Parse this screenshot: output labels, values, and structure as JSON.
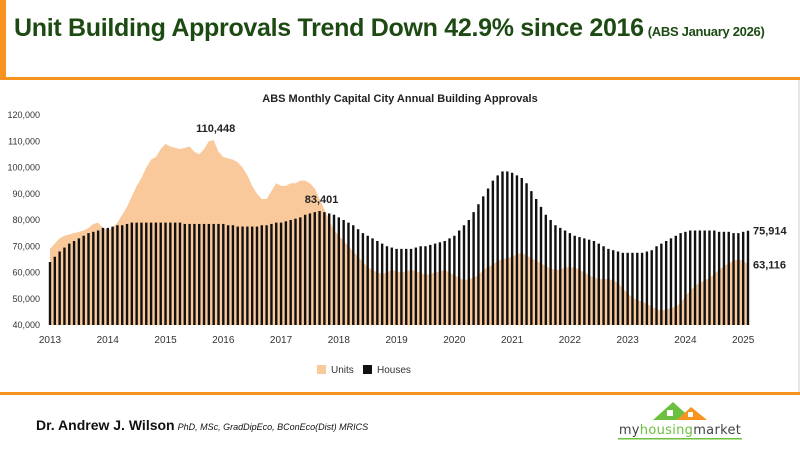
{
  "header": {
    "title": "Unit Building Approvals Trend Down 42.9% since 2016",
    "subtitle": "(ABS January 2026)"
  },
  "footer": {
    "author": "Dr. Andrew J. Wilson",
    "credentials": "PhD, MSc, GradDipEco, BConEco(Dist) MRICS",
    "logo_text": "myhousingmarket"
  },
  "colors": {
    "accent": "#f7931e",
    "title": "#1d4a12",
    "units": "#f9c89b",
    "houses": "#111111"
  },
  "chart_data": {
    "type": "bar+area",
    "title": "ABS Monthly Capital City Annual Building Approvals",
    "xlabel": "",
    "ylabel": "",
    "ylim": [
      40000,
      120000
    ],
    "yticks": [
      "40,000",
      "50,000",
      "60,000",
      "70,000",
      "80,000",
      "90,000",
      "100,000",
      "110,000",
      "120,000"
    ],
    "xticks": [
      "2013",
      "2014",
      "2015",
      "2016",
      "2017",
      "2018",
      "2019",
      "2020",
      "2021",
      "2022",
      "2023",
      "2024",
      "2025"
    ],
    "start": "2013-01",
    "frequency": "monthly",
    "grid": false,
    "legend": "bottom",
    "annotations": [
      {
        "series": "Units",
        "text": "110,448"
      },
      {
        "series": "Houses",
        "text": "83,401"
      },
      {
        "series": "Houses",
        "text": "75,914",
        "position": "end"
      },
      {
        "series": "Units",
        "text": "63,116",
        "position": "end"
      }
    ],
    "series": [
      {
        "name": "Units",
        "kind": "area",
        "values": [
          69000,
          71000,
          73000,
          74000,
          74500,
          75000,
          75500,
          76000,
          77000,
          78500,
          79000,
          77000,
          76000,
          77000,
          79000,
          82000,
          85000,
          89000,
          93000,
          96000,
          100000,
          103000,
          104000,
          107000,
          109000,
          108000,
          107500,
          107000,
          107500,
          108000,
          106000,
          105000,
          107000,
          110000,
          110448,
          106000,
          104000,
          103500,
          103000,
          102000,
          100000,
          97000,
          93000,
          90000,
          88000,
          88000,
          91000,
          94000,
          93000,
          93000,
          94000,
          94000,
          95000,
          95000,
          94000,
          92000,
          88000,
          84000,
          80000,
          76000,
          74000,
          72000,
          70000,
          68000,
          66000,
          64000,
          62000,
          61000,
          60000,
          59500,
          60000,
          61000,
          60500,
          60000,
          60500,
          61000,
          60500,
          60000,
          59000,
          59500,
          60000,
          60500,
          61000,
          60000,
          59000,
          58000,
          57000,
          57500,
          58000,
          59000,
          61000,
          62000,
          63000,
          64500,
          65000,
          65500,
          66000,
          67000,
          67500,
          66500,
          65500,
          64500,
          63500,
          62500,
          61500,
          61000,
          61000,
          62000,
          62000,
          62000,
          61000,
          60000,
          59000,
          58000,
          57500,
          57500,
          57500,
          57000,
          56000,
          54000,
          52000,
          50500,
          49500,
          49000,
          48000,
          47000,
          46000,
          45500,
          46000,
          46500,
          47000,
          48500,
          51000,
          53000,
          55000,
          56000,
          57000,
          58000,
          59500,
          61000,
          62500,
          63500,
          64500,
          65000,
          64500,
          63116
        ]
      },
      {
        "name": "Houses",
        "kind": "bar",
        "values": [
          64000,
          66000,
          68000,
          69500,
          71000,
          72000,
          73000,
          74000,
          75000,
          75500,
          76000,
          77000,
          77000,
          77500,
          78000,
          78000,
          78500,
          79000,
          79000,
          79000,
          79000,
          79000,
          79000,
          79000,
          79000,
          79000,
          79000,
          79000,
          78500,
          78500,
          78500,
          78500,
          78500,
          78500,
          78500,
          78500,
          78500,
          78000,
          78000,
          77500,
          77500,
          77500,
          77500,
          77500,
          78000,
          78000,
          78500,
          79000,
          79000,
          79500,
          80000,
          80500,
          81000,
          82000,
          82500,
          83000,
          83401,
          83000,
          82500,
          82000,
          81000,
          80000,
          79000,
          78000,
          76500,
          75000,
          74000,
          73000,
          72000,
          71000,
          70000,
          69500,
          69000,
          69000,
          69000,
          69000,
          69500,
          70000,
          70000,
          70500,
          71000,
          71500,
          72000,
          73000,
          74000,
          76000,
          78000,
          80000,
          83000,
          86000,
          89000,
          92000,
          95000,
          97000,
          98500,
          98500,
          98000,
          97000,
          96000,
          94000,
          91000,
          88000,
          85000,
          82000,
          80000,
          78000,
          77000,
          76000,
          75000,
          74000,
          73500,
          73000,
          72500,
          72000,
          71000,
          70000,
          69000,
          68500,
          68000,
          67500,
          67500,
          67500,
          67500,
          67500,
          68000,
          68500,
          70000,
          71000,
          72000,
          73000,
          74000,
          75000,
          75500,
          76000,
          76000,
          76000,
          76000,
          76000,
          76000,
          75500,
          75500,
          75500,
          75000,
          75000,
          75500,
          75914
        ]
      }
    ]
  }
}
